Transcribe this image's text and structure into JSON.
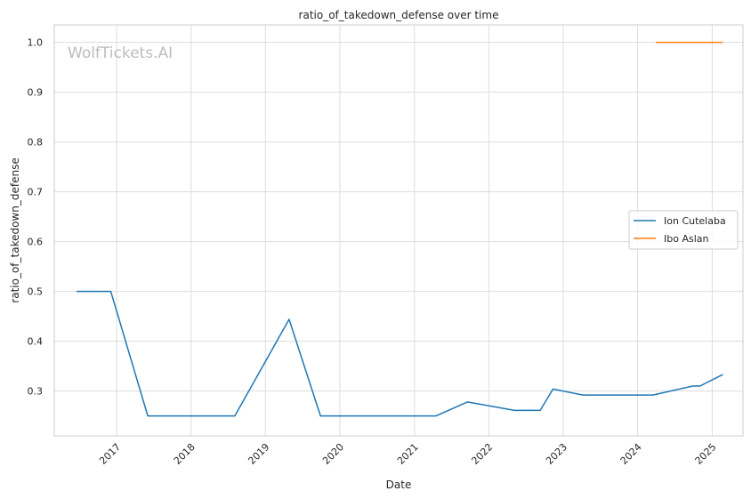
{
  "chart_data": {
    "type": "line",
    "title": "ratio_of_takedown_defense over time",
    "xlabel": "Date",
    "ylabel": "ratio_of_takedown_defense",
    "watermark": "WolfTickets.AI",
    "x_range": [
      "2016-03-01",
      "2025-06-01"
    ],
    "ylim": [
      0.21,
      1.035
    ],
    "x_ticks": [
      {
        "date": "2017-01-01",
        "label": "2017"
      },
      {
        "date": "2018-01-01",
        "label": "2018"
      },
      {
        "date": "2019-01-01",
        "label": "2019"
      },
      {
        "date": "2020-01-01",
        "label": "2020"
      },
      {
        "date": "2021-01-01",
        "label": "2021"
      },
      {
        "date": "2022-01-01",
        "label": "2022"
      },
      {
        "date": "2023-01-01",
        "label": "2023"
      },
      {
        "date": "2024-01-01",
        "label": "2024"
      },
      {
        "date": "2025-01-01",
        "label": "2025"
      }
    ],
    "y_ticks": [
      {
        "value": 0.3,
        "label": "0.3"
      },
      {
        "value": 0.4,
        "label": "0.4"
      },
      {
        "value": 0.5,
        "label": "0.5"
      },
      {
        "value": 0.6,
        "label": "0.6"
      },
      {
        "value": 0.7,
        "label": "0.7"
      },
      {
        "value": 0.8,
        "label": "0.8"
      },
      {
        "value": 0.9,
        "label": "0.9"
      },
      {
        "value": 1.0,
        "label": "1.0"
      }
    ],
    "grid": true,
    "legend_position": "center-right",
    "series": [
      {
        "name": "Ion Cutelaba",
        "color": "#1f77b4",
        "points": [
          {
            "x": "2016-06-18",
            "y": 0.5
          },
          {
            "x": "2016-12-03",
            "y": 0.5
          },
          {
            "x": "2017-06-03",
            "y": 0.25
          },
          {
            "x": "2018-08-04",
            "y": 0.25
          },
          {
            "x": "2019-04-27",
            "y": 0.444
          },
          {
            "x": "2019-09-28",
            "y": 0.25
          },
          {
            "x": "2021-04-17",
            "y": 0.25
          },
          {
            "x": "2021-09-18",
            "y": 0.278
          },
          {
            "x": "2022-05-07",
            "y": 0.261
          },
          {
            "x": "2022-09-10",
            "y": 0.261
          },
          {
            "x": "2022-11-12",
            "y": 0.304
          },
          {
            "x": "2023-04-08",
            "y": 0.292
          },
          {
            "x": "2024-03-16",
            "y": 0.292
          },
          {
            "x": "2024-09-28",
            "y": 0.31
          },
          {
            "x": "2024-11-02",
            "y": 0.31
          },
          {
            "x": "2025-02-22",
            "y": 0.333
          }
        ]
      },
      {
        "name": "Ibo Aslan",
        "color": "#ff7f0e",
        "points": [
          {
            "x": "2024-03-30",
            "y": 1.0
          },
          {
            "x": "2024-09-07",
            "y": 1.0
          },
          {
            "x": "2025-02-22",
            "y": 1.0
          }
        ]
      }
    ]
  }
}
